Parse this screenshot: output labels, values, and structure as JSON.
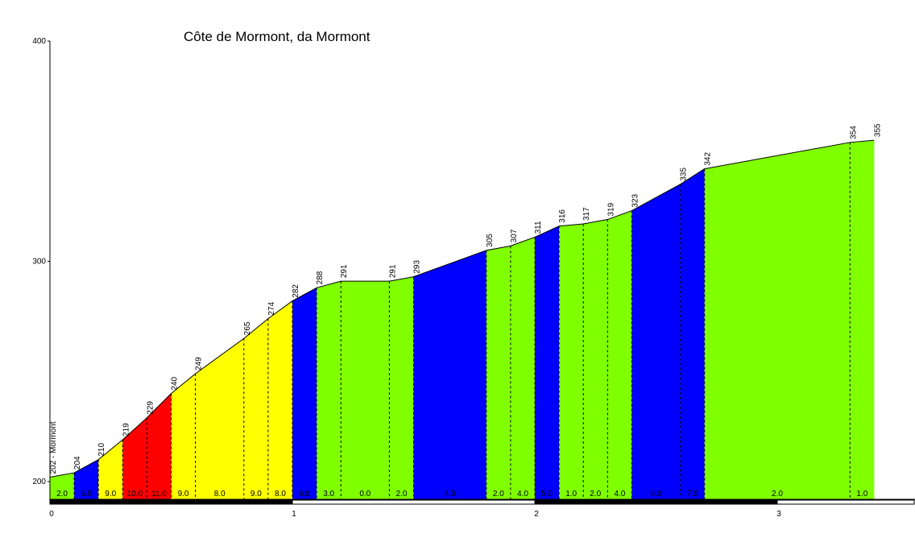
{
  "chart_data": {
    "type": "area",
    "title": "Côte de Mormont, da Mormont",
    "xlabel": "",
    "ylabel": "",
    "xlim": [
      0,
      3.58
    ],
    "ylim": [
      193,
      400
    ],
    "x_ticks": [
      "0",
      "1",
      "2",
      "3"
    ],
    "y_ticks": [
      "200",
      "300",
      "400"
    ],
    "grid": false,
    "colors": {
      "green": "#80ff00",
      "blue": "#0000ff",
      "yellow": "#ffff00",
      "red": "#ff0000"
    },
    "points": [
      {
        "x": 0.0,
        "elev": 202,
        "label": "202 - Mormont"
      },
      {
        "x": 0.1,
        "elev": 204,
        "label": "204"
      },
      {
        "x": 0.2,
        "elev": 210,
        "label": "210"
      },
      {
        "x": 0.3,
        "elev": 219,
        "label": "219"
      },
      {
        "x": 0.4,
        "elev": 229,
        "label": "229"
      },
      {
        "x": 0.5,
        "elev": 240,
        "label": "240"
      },
      {
        "x": 0.6,
        "elev": 249,
        "label": "249"
      },
      {
        "x": 0.8,
        "elev": 265,
        "label": "265"
      },
      {
        "x": 0.9,
        "elev": 274,
        "label": "274"
      },
      {
        "x": 1.0,
        "elev": 282,
        "label": "282"
      },
      {
        "x": 1.1,
        "elev": 288,
        "label": "288"
      },
      {
        "x": 1.2,
        "elev": 291,
        "label": "291"
      },
      {
        "x": 1.4,
        "elev": 291,
        "label": "291"
      },
      {
        "x": 1.5,
        "elev": 293,
        "label": "293"
      },
      {
        "x": 1.8,
        "elev": 305,
        "label": "305"
      },
      {
        "x": 1.9,
        "elev": 307,
        "label": "307"
      },
      {
        "x": 2.0,
        "elev": 311,
        "label": "311"
      },
      {
        "x": 2.1,
        "elev": 316,
        "label": "316"
      },
      {
        "x": 2.2,
        "elev": 317,
        "label": "317"
      },
      {
        "x": 2.3,
        "elev": 319,
        "label": "319"
      },
      {
        "x": 2.4,
        "elev": 323,
        "label": "323"
      },
      {
        "x": 2.6,
        "elev": 335,
        "label": "335"
      },
      {
        "x": 2.7,
        "elev": 342,
        "label": "342"
      },
      {
        "x": 3.3,
        "elev": 354,
        "label": "354"
      },
      {
        "x": 3.4,
        "elev": 355,
        "label": "355"
      }
    ],
    "segments": [
      {
        "from": 0.0,
        "to": 0.1,
        "grade": "2.0",
        "color": "green"
      },
      {
        "from": 0.1,
        "to": 0.2,
        "grade": "6.0",
        "color": "blue"
      },
      {
        "from": 0.2,
        "to": 0.3,
        "grade": "9.0",
        "color": "yellow"
      },
      {
        "from": 0.3,
        "to": 0.4,
        "grade": "10.0",
        "color": "red"
      },
      {
        "from": 0.4,
        "to": 0.5,
        "grade": "11.0",
        "color": "red"
      },
      {
        "from": 0.5,
        "to": 0.6,
        "grade": "9.0",
        "color": "yellow"
      },
      {
        "from": 0.6,
        "to": 0.8,
        "grade": "8.0",
        "color": "yellow"
      },
      {
        "from": 0.8,
        "to": 0.9,
        "grade": "9.0",
        "color": "yellow"
      },
      {
        "from": 0.9,
        "to": 1.0,
        "grade": "8.0",
        "color": "yellow"
      },
      {
        "from": 1.0,
        "to": 1.1,
        "grade": "6.0",
        "color": "blue"
      },
      {
        "from": 1.1,
        "to": 1.2,
        "grade": "3.0",
        "color": "green"
      },
      {
        "from": 1.2,
        "to": 1.4,
        "grade": "0.0",
        "color": "green"
      },
      {
        "from": 1.4,
        "to": 1.5,
        "grade": "2.0",
        "color": "green"
      },
      {
        "from": 1.5,
        "to": 1.8,
        "grade": "4.0",
        "color": "blue"
      },
      {
        "from": 1.8,
        "to": 1.9,
        "grade": "2.0",
        "color": "green"
      },
      {
        "from": 1.9,
        "to": 2.0,
        "grade": "4.0",
        "color": "green"
      },
      {
        "from": 2.0,
        "to": 2.1,
        "grade": "5.0",
        "color": "blue"
      },
      {
        "from": 2.1,
        "to": 2.2,
        "grade": "1.0",
        "color": "green"
      },
      {
        "from": 2.2,
        "to": 2.3,
        "grade": "2.0",
        "color": "green"
      },
      {
        "from": 2.3,
        "to": 2.4,
        "grade": "4.0",
        "color": "green"
      },
      {
        "from": 2.4,
        "to": 2.6,
        "grade": "6.0",
        "color": "blue"
      },
      {
        "from": 2.6,
        "to": 2.7,
        "grade": "7.0",
        "color": "blue"
      },
      {
        "from": 2.7,
        "to": 3.3,
        "grade": "2.0",
        "color": "green"
      },
      {
        "from": 3.3,
        "to": 3.4,
        "grade": "1.0",
        "color": "green"
      }
    ]
  }
}
